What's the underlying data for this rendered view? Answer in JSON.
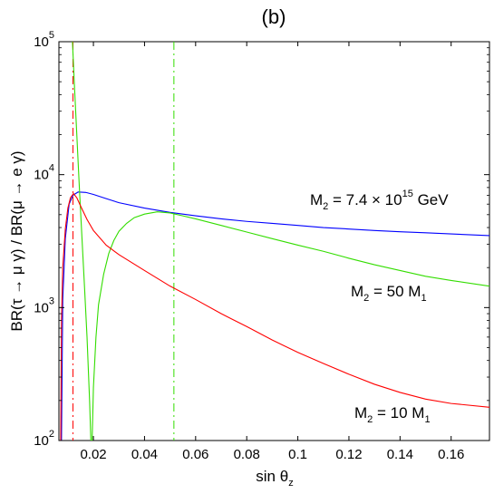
{
  "chart_data": {
    "type": "line",
    "title": "(b)",
    "xlabel": "sin θ",
    "xlabel_sub": "z",
    "ylabel": "BR(τ  → μ γ) / BR(μ  → e γ)",
    "xscale": "linear",
    "yscale": "log",
    "xlim": [
      0.0065,
      0.175
    ],
    "ylim": [
      100,
      100000
    ],
    "grid": false,
    "x_ticks": [
      0.02,
      0.04,
      0.06,
      0.08,
      0.1,
      0.12,
      0.14,
      0.16
    ],
    "x_tick_labels": [
      "0.02",
      "0.04",
      "0.06",
      "0.08",
      "0.1",
      "0.12",
      "0.14",
      "0.16"
    ],
    "y_ticks": [
      100,
      1000,
      10000,
      100000
    ],
    "y_tick_labels": [
      {
        "base": "10",
        "exp": "2"
      },
      {
        "base": "10",
        "exp": "3"
      },
      {
        "base": "10",
        "exp": "4"
      },
      {
        "base": "10",
        "exp": "5"
      }
    ],
    "series": [
      {
        "label_parts": {
          "pre": "M",
          "sub": "2",
          "mid": " = 7.4 × 10",
          "sup": "15",
          "post": " GeV"
        },
        "color": "#0000ff",
        "points": [
          [
            0.0075,
            100
          ],
          [
            0.008,
            1150
          ],
          [
            0.009,
            3300
          ],
          [
            0.0105,
            6000
          ],
          [
            0.012,
            7000
          ],
          [
            0.014,
            7400
          ],
          [
            0.017,
            7350
          ],
          [
            0.02,
            7100
          ],
          [
            0.025,
            6600
          ],
          [
            0.03,
            6150
          ],
          [
            0.04,
            5600
          ],
          [
            0.05,
            5200
          ],
          [
            0.06,
            4900
          ],
          [
            0.07,
            4650
          ],
          [
            0.08,
            4450
          ],
          [
            0.09,
            4300
          ],
          [
            0.1,
            4150
          ],
          [
            0.11,
            4000
          ],
          [
            0.12,
            3900
          ],
          [
            0.13,
            3800
          ],
          [
            0.14,
            3720
          ],
          [
            0.15,
            3650
          ],
          [
            0.16,
            3580
          ],
          [
            0.175,
            3480
          ]
        ]
      },
      {
        "label_parts": {
          "pre": "M",
          "sub": "2",
          "mid": " = 50 M",
          "sup": "",
          "post": "",
          "sub2": "1"
        },
        "color": "#33dd00",
        "points": [
          [
            0.0118,
            100000
          ],
          [
            0.0125,
            50000
          ],
          [
            0.0135,
            20000
          ],
          [
            0.0145,
            8000
          ],
          [
            0.0155,
            3400
          ],
          [
            0.0165,
            1450
          ],
          [
            0.0175,
            600
          ],
          [
            0.0185,
            200
          ],
          [
            0.019,
            100
          ],
          [
            0.0195,
            100
          ],
          [
            0.02,
            250
          ],
          [
            0.021,
            600
          ],
          [
            0.022,
            1050
          ],
          [
            0.024,
            1780
          ],
          [
            0.026,
            2550
          ],
          [
            0.028,
            3200
          ],
          [
            0.03,
            3750
          ],
          [
            0.033,
            4300
          ],
          [
            0.036,
            4750
          ],
          [
            0.04,
            5050
          ],
          [
            0.045,
            5250
          ],
          [
            0.05,
            5150
          ],
          [
            0.055,
            4900
          ],
          [
            0.06,
            4650
          ],
          [
            0.07,
            4150
          ],
          [
            0.08,
            3700
          ],
          [
            0.09,
            3300
          ],
          [
            0.1,
            2950
          ],
          [
            0.11,
            2650
          ],
          [
            0.12,
            2350
          ],
          [
            0.13,
            2100
          ],
          [
            0.14,
            1900
          ],
          [
            0.15,
            1720
          ],
          [
            0.16,
            1600
          ],
          [
            0.175,
            1450
          ]
        ]
      },
      {
        "label_parts": {
          "pre": "M",
          "sub": "2",
          "mid": " = 10 M",
          "sup": "",
          "post": "",
          "sub2": "1"
        },
        "color": "#ff0000",
        "points": [
          [
            0.0072,
            100
          ],
          [
            0.0075,
            800
          ],
          [
            0.008,
            2000
          ],
          [
            0.009,
            3900
          ],
          [
            0.01,
            5600
          ],
          [
            0.011,
            6700
          ],
          [
            0.0122,
            7200
          ],
          [
            0.0135,
            6700
          ],
          [
            0.015,
            5800
          ],
          [
            0.0175,
            4600
          ],
          [
            0.02,
            3800
          ],
          [
            0.025,
            2950
          ],
          [
            0.03,
            2500
          ],
          [
            0.04,
            1900
          ],
          [
            0.05,
            1450
          ],
          [
            0.06,
            1150
          ],
          [
            0.07,
            900
          ],
          [
            0.08,
            720
          ],
          [
            0.09,
            570
          ],
          [
            0.1,
            460
          ],
          [
            0.11,
            380
          ],
          [
            0.12,
            315
          ],
          [
            0.13,
            265
          ],
          [
            0.14,
            230
          ],
          [
            0.15,
            205
          ],
          [
            0.16,
            190
          ],
          [
            0.175,
            178
          ]
        ]
      }
    ],
    "vlines": [
      {
        "x": 0.012,
        "color": "#ff0000",
        "style": "dash-dot"
      },
      {
        "x": 0.0515,
        "color": "#33dd00",
        "style": "dash-dot"
      }
    ]
  }
}
